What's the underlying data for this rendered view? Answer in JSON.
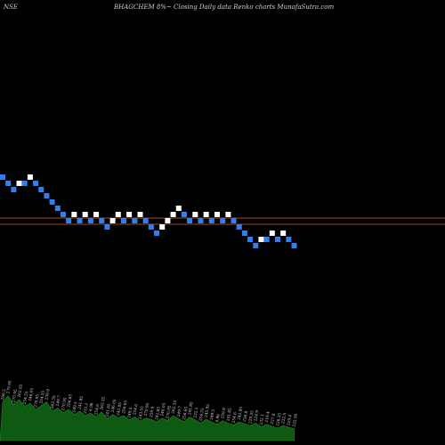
{
  "header": {
    "exchange": "NSE",
    "title": "BHAGCHEM 8%~ Closing Daily data Renko charts MunafaSutra.com"
  },
  "chart_data": {
    "type": "renko",
    "title": "BHAGCHEM 8%~ Closing Daily data Renko charts MunafaSutra.com",
    "brick_step_pct": 8,
    "reference_lines": [
      {
        "name": "upper",
        "level": 1.0
      },
      {
        "name": "lower",
        "level": 0.0
      }
    ],
    "bricks": [
      {
        "dir": "down",
        "level": 8
      },
      {
        "dir": "down",
        "level": 7
      },
      {
        "dir": "down",
        "level": 6
      },
      {
        "dir": "up",
        "level": 7
      },
      {
        "dir": "down",
        "level": 7
      },
      {
        "dir": "up",
        "level": 8
      },
      {
        "dir": "down",
        "level": 7
      },
      {
        "dir": "down",
        "level": 6
      },
      {
        "dir": "down",
        "level": 5
      },
      {
        "dir": "down",
        "level": 4
      },
      {
        "dir": "down",
        "level": 3
      },
      {
        "dir": "down",
        "level": 2
      },
      {
        "dir": "down",
        "level": 1
      },
      {
        "dir": "up",
        "level": 2
      },
      {
        "dir": "down",
        "level": 1
      },
      {
        "dir": "up",
        "level": 2
      },
      {
        "dir": "down",
        "level": 1
      },
      {
        "dir": "up",
        "level": 2
      },
      {
        "dir": "down",
        "level": 1
      },
      {
        "dir": "down",
        "level": 0
      },
      {
        "dir": "up",
        "level": 1
      },
      {
        "dir": "up",
        "level": 2
      },
      {
        "dir": "down",
        "level": 1
      },
      {
        "dir": "up",
        "level": 2
      },
      {
        "dir": "down",
        "level": 1
      },
      {
        "dir": "up",
        "level": 2
      },
      {
        "dir": "down",
        "level": 1
      },
      {
        "dir": "down",
        "level": 0
      },
      {
        "dir": "down",
        "level": -1
      },
      {
        "dir": "up",
        "level": 0
      },
      {
        "dir": "up",
        "level": 1
      },
      {
        "dir": "up",
        "level": 2
      },
      {
        "dir": "up",
        "level": 3
      },
      {
        "dir": "down",
        "level": 2
      },
      {
        "dir": "down",
        "level": 1
      },
      {
        "dir": "up",
        "level": 2
      },
      {
        "dir": "down",
        "level": 1
      },
      {
        "dir": "up",
        "level": 2
      },
      {
        "dir": "down",
        "level": 1
      },
      {
        "dir": "up",
        "level": 2
      },
      {
        "dir": "down",
        "level": 1
      },
      {
        "dir": "up",
        "level": 2
      },
      {
        "dir": "down",
        "level": 1
      },
      {
        "dir": "down",
        "level": 0
      },
      {
        "dir": "down",
        "level": -1
      },
      {
        "dir": "down",
        "level": -2
      },
      {
        "dir": "down",
        "level": -3
      },
      {
        "dir": "up",
        "level": -2
      },
      {
        "dir": "down",
        "level": -2
      },
      {
        "dir": "up",
        "level": -1
      },
      {
        "dir": "down",
        "level": -2
      },
      {
        "dir": "up",
        "level": -1
      },
      {
        "dir": "down",
        "level": -2
      },
      {
        "dir": "down",
        "level": -3
      }
    ],
    "volume_area": [
      0.62,
      0.72,
      0.58,
      0.66,
      0.55,
      0.6,
      0.5,
      0.56,
      0.62,
      0.48,
      0.52,
      0.45,
      0.5,
      0.42,
      0.47,
      0.4,
      0.44,
      0.38,
      0.46,
      0.35,
      0.42,
      0.37,
      0.4,
      0.33,
      0.38,
      0.31,
      0.36,
      0.34,
      0.3,
      0.36,
      0.32,
      0.4,
      0.35,
      0.3,
      0.38,
      0.33,
      0.28,
      0.34,
      0.3,
      0.26,
      0.32,
      0.28,
      0.25,
      0.3,
      0.27,
      0.24,
      0.28,
      0.22,
      0.26,
      0.23,
      0.2,
      0.24,
      0.21,
      0.19
    ],
    "volume_labels": [
      "266.5",
      "279.95",
      "270.95",
      "262.05",
      "254.55",
      "246.05",
      "270.95",
      "254.55",
      "259.9",
      "262.35",
      "249.7",
      "270.95",
      "256.65",
      "249.5",
      "241.85",
      "232.1",
      "6.96",
      "254.6",
      "262.35",
      "241.85",
      "246.05",
      "242.85",
      "256.65",
      "249.5",
      "254.6",
      "243.55",
      "270.95",
      "259.9",
      "241.85",
      "246.05",
      "270.95",
      "262.35",
      "249.7",
      "256.65",
      "241.85",
      "232.1",
      "254.55",
      "245.95",
      "249.5",
      "6.96",
      "259.9",
      "241.85",
      "254.6",
      "242.85",
      "236.8",
      "229.55",
      "224.9",
      "232.1",
      "219.4",
      "227.8",
      "226.35",
      "222.5",
      "219.4",
      "225.95"
    ]
  }
}
